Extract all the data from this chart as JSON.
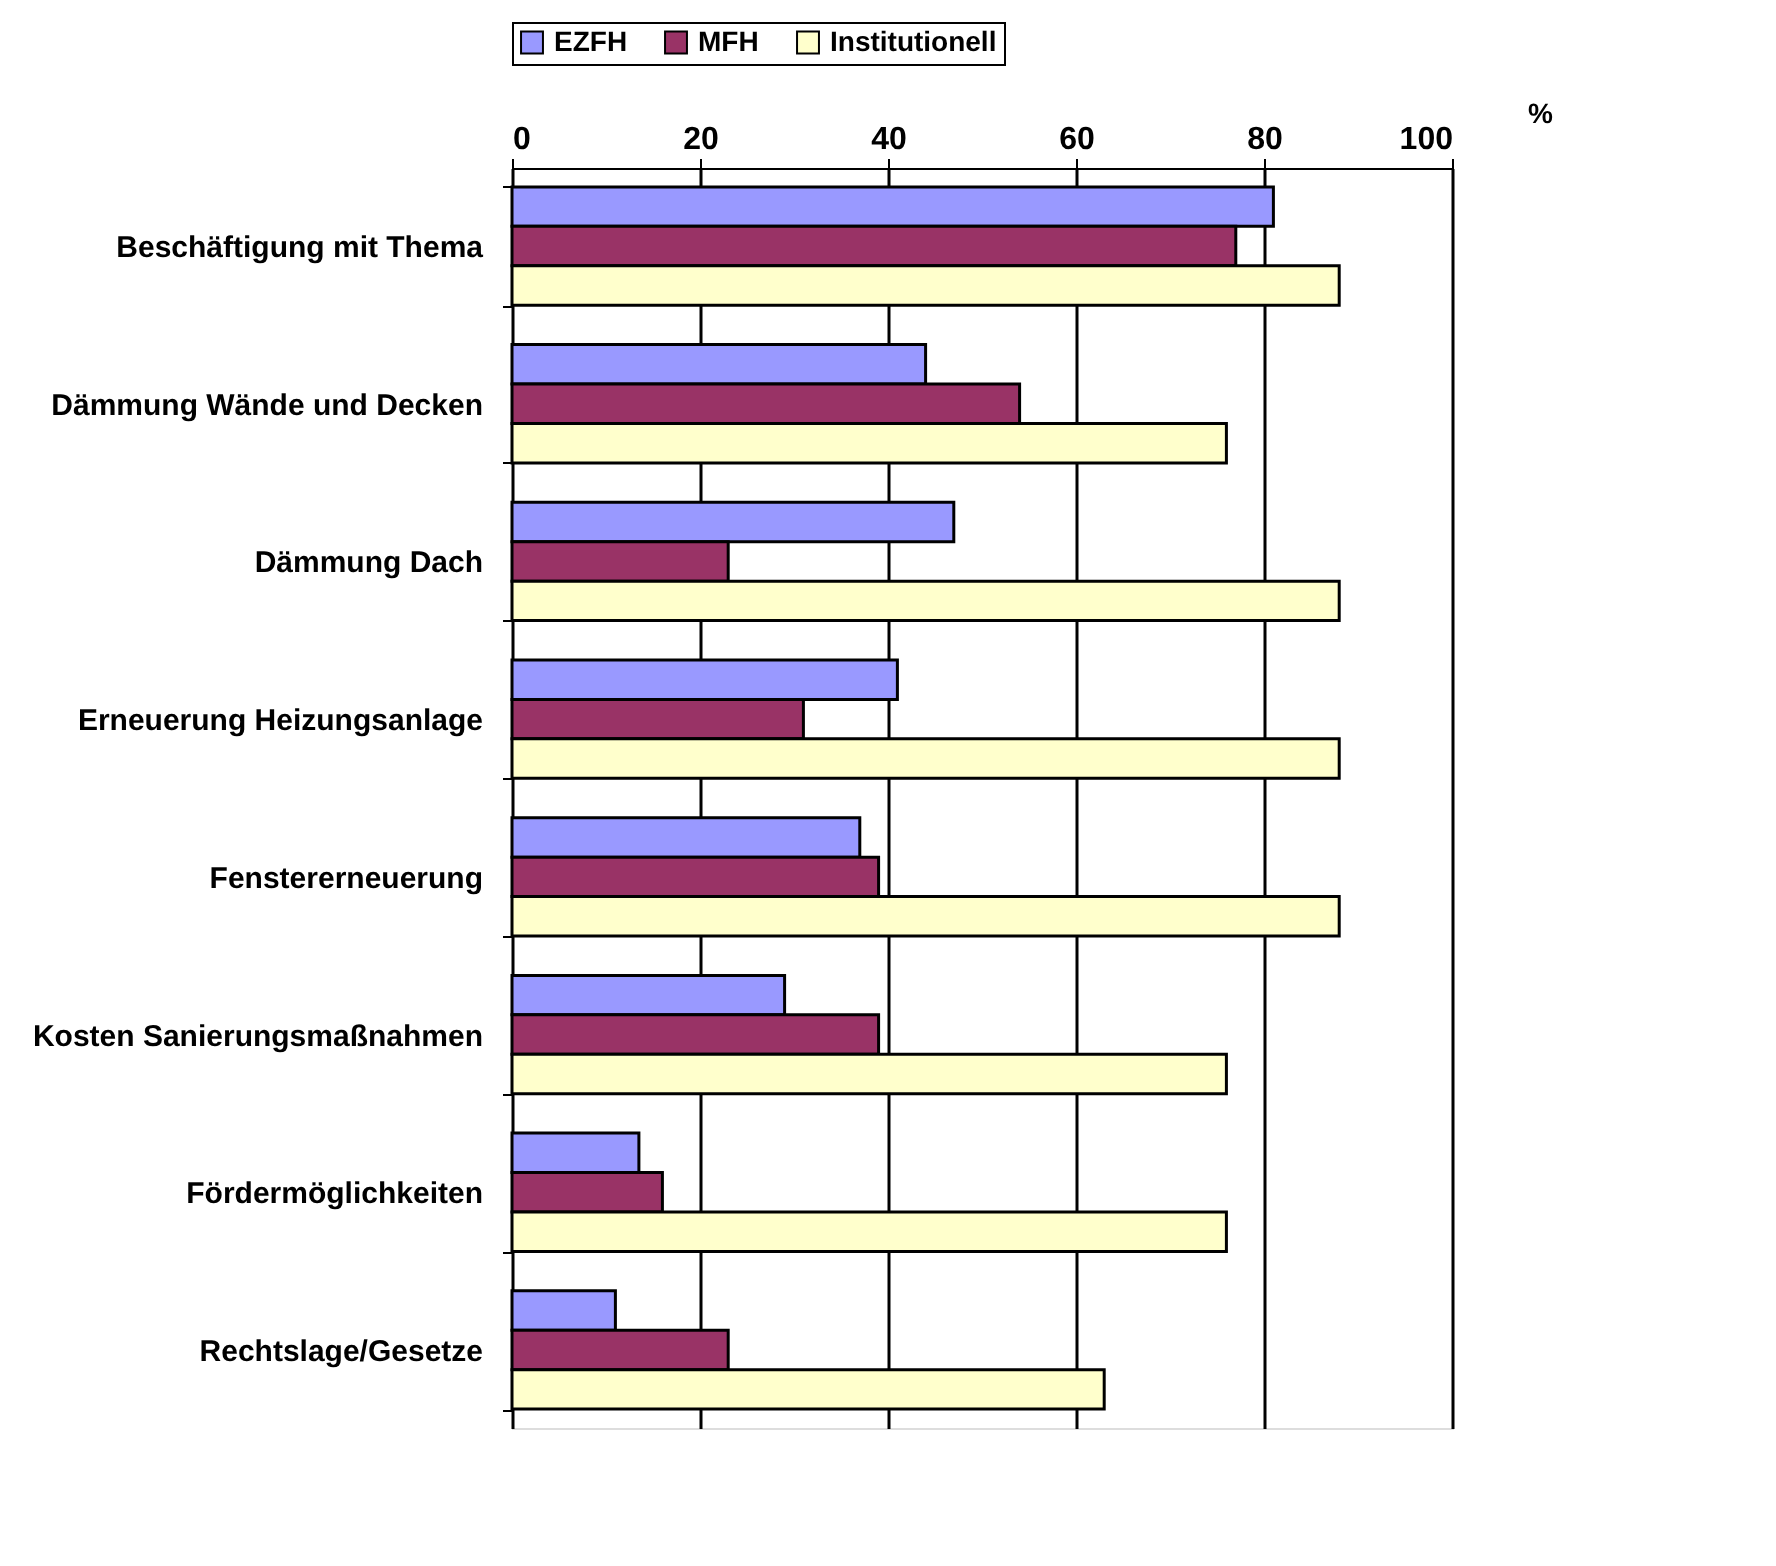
{
  "chart_data": {
    "type": "bar",
    "orientation": "horizontal",
    "xlabel": "%",
    "categories": [
      "Beschäftigung mit Thema",
      "Dämmung Wände und Decken",
      "Dämmung Dach",
      "Erneuerung Heizungsanlage",
      "Fenstererneuerung",
      "Kosten Sanierungsmaßnahmen",
      "Fördermöglichkeiten",
      "Rechtslage/Gesetze"
    ],
    "series": [
      {
        "name": "EZFH",
        "color": "#9999ff",
        "values": [
          81,
          44,
          47,
          41,
          37,
          29,
          13.5,
          11
        ]
      },
      {
        "name": "MFH",
        "color": "#993366",
        "values": [
          77,
          54,
          23,
          31,
          39,
          39,
          16,
          23
        ]
      },
      {
        "name": "Institutionell",
        "color": "#ffffcc",
        "values": [
          88,
          76,
          88,
          88,
          88,
          76,
          76,
          63
        ]
      }
    ],
    "xlim": [
      0,
      100
    ],
    "xticks": [
      0,
      20,
      40,
      60,
      80,
      100
    ],
    "grid": "x",
    "legend": "top"
  }
}
